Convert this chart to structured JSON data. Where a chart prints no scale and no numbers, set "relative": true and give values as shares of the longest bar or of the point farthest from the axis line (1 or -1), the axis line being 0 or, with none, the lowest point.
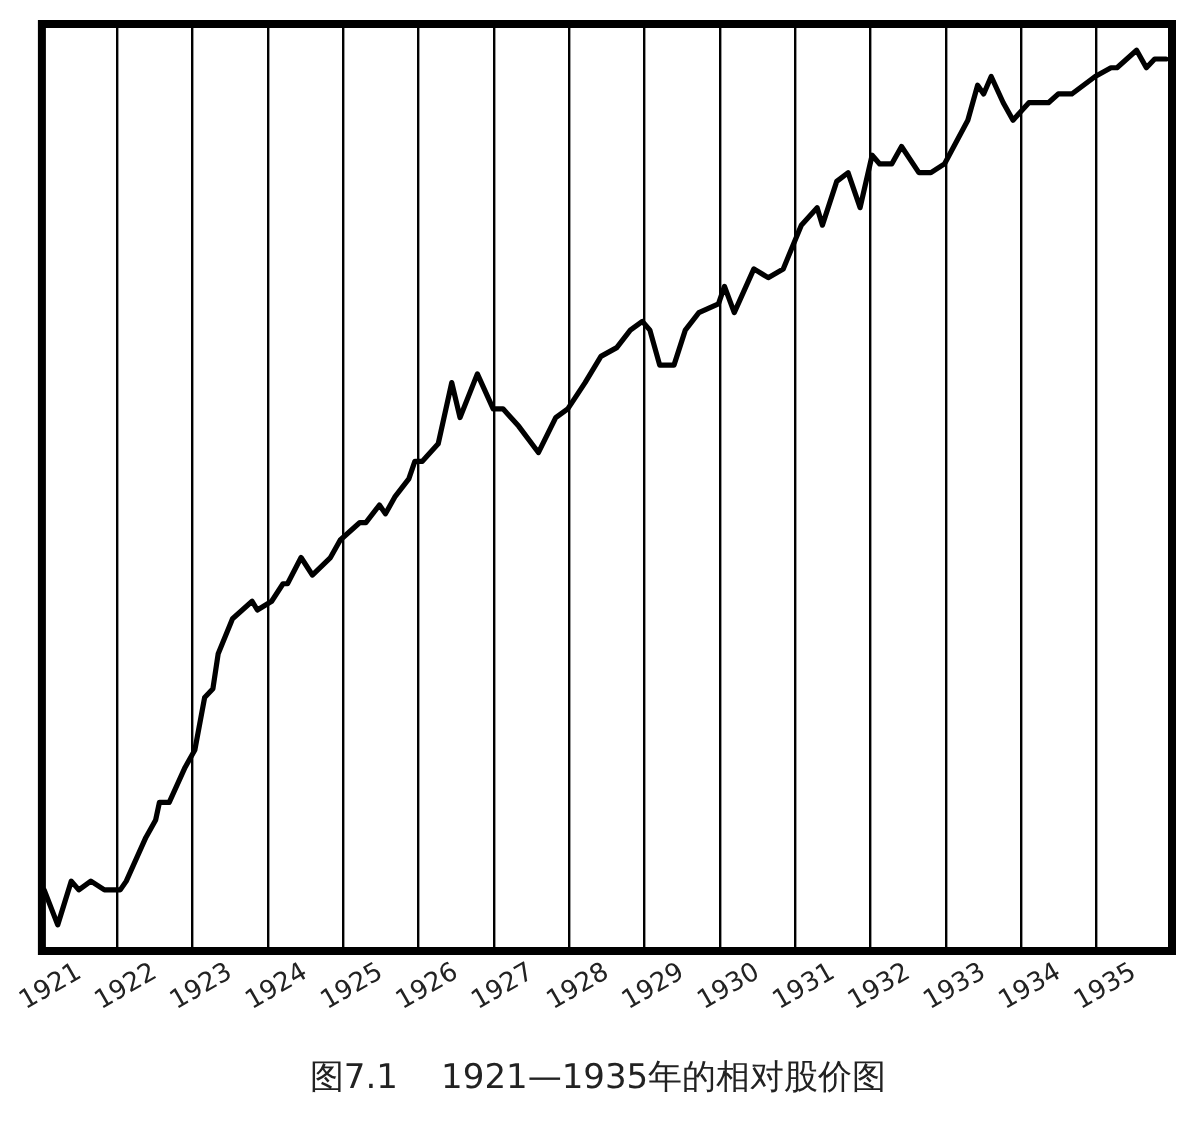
{
  "chart_data": {
    "type": "line",
    "title": "图7.1    1921—1935年的相对股价图",
    "relative": true,
    "grid": "x",
    "marker": "none",
    "line_style": "solid",
    "legend": false,
    "xlim": [
      1921,
      1936
    ],
    "xticks": [
      {
        "value": 1921.5,
        "label": "1921"
      },
      {
        "value": 1922,
        "label": null
      },
      {
        "value": 1922.5,
        "label": "1922"
      },
      {
        "value": 1923,
        "label": null
      },
      {
        "value": 1923.5,
        "label": "1923"
      },
      {
        "value": 1924,
        "label": null
      },
      {
        "value": 1924.5,
        "label": "1924"
      },
      {
        "value": 1925,
        "label": null
      },
      {
        "value": 1925.5,
        "label": "1925"
      },
      {
        "value": 1926,
        "label": null
      },
      {
        "value": 1926.5,
        "label": "1926"
      },
      {
        "value": 1927,
        "label": null
      },
      {
        "value": 1927.5,
        "label": "1927"
      },
      {
        "value": 1928,
        "label": null
      },
      {
        "value": 1928.5,
        "label": "1928"
      },
      {
        "value": 1929,
        "label": null
      },
      {
        "value": 1929.5,
        "label": "1929"
      },
      {
        "value": 1930,
        "label": null
      },
      {
        "value": 1930.5,
        "label": "1930"
      },
      {
        "value": 1931,
        "label": null
      },
      {
        "value": 1931.5,
        "label": "1931"
      },
      {
        "value": 1932,
        "label": null
      },
      {
        "value": 1932.5,
        "label": "1932"
      },
      {
        "value": 1933,
        "label": null
      },
      {
        "value": 1933.5,
        "label": "1933"
      },
      {
        "value": 1934,
        "label": null
      },
      {
        "value": 1934.5,
        "label": "1934"
      },
      {
        "value": 1935,
        "label": null
      },
      {
        "value": 1935.5,
        "label": "1935"
      }
    ],
    "x": [
      1921.03,
      1921.21,
      1921.39,
      1921.49,
      1921.65,
      1921.83,
      1922.04,
      1922.12,
      1922.38,
      1922.51,
      1922.56,
      1922.69,
      1922.9,
      1923.03,
      1923.16,
      1923.27,
      1923.34,
      1923.53,
      1923.79,
      1923.86,
      1924.05,
      1924.2,
      1924.26,
      1924.44,
      1924.59,
      1924.83,
      1924.96,
      1925.22,
      1925.3,
      1925.48,
      1925.56,
      1925.69,
      1925.87,
      1925.95,
      1926.05,
      1926.26,
      1926.44,
      1926.55,
      1926.78,
      1926.99,
      1927.12,
      1927.33,
      1927.59,
      1927.82,
      1927.98,
      1928.21,
      1928.42,
      1928.63,
      1928.81,
      1928.97,
      1929.07,
      1929.2,
      1929.39,
      1929.54,
      1929.72,
      1929.98,
      1930.06,
      1930.19,
      1930.45,
      1930.64,
      1930.84,
      1931.08,
      1931.29,
      1931.36,
      1931.55,
      1931.7,
      1931.86,
      1932.02,
      1932.12,
      1932.28,
      1932.41,
      1932.64,
      1932.8,
      1932.98,
      1933.29,
      1933.42,
      1933.5,
      1933.6,
      1933.76,
      1933.89,
      1934.1,
      1934.36,
      1934.49,
      1934.67,
      1934.98,
      1935.19,
      1935.27,
      1935.53,
      1935.66,
      1935.77,
      1935.92
    ],
    "series": [
      {
        "color": "#000000",
        "values": [
          0.04,
          0,
          0.05,
          0.04,
          0.05,
          0.04,
          0.04,
          0.05,
          0.1,
          0.12,
          0.14,
          0.14,
          0.18,
          0.2,
          0.26,
          0.27,
          0.31,
          0.35,
          0.37,
          0.36,
          0.37,
          0.39,
          0.39,
          0.42,
          0.4,
          0.42,
          0.44,
          0.46,
          0.46,
          0.48,
          0.47,
          0.49,
          0.51,
          0.53,
          0.53,
          0.55,
          0.62,
          0.58,
          0.63,
          0.59,
          0.59,
          0.57,
          0.54,
          0.58,
          0.59,
          0.62,
          0.65,
          0.66,
          0.68,
          0.69,
          0.68,
          0.64,
          0.64,
          0.68,
          0.7,
          0.71,
          0.73,
          0.7,
          0.75,
          0.74,
          0.75,
          0.8,
          0.82,
          0.8,
          0.85,
          0.86,
          0.82,
          0.88,
          0.87,
          0.87,
          0.89,
          0.86,
          0.86,
          0.87,
          0.92,
          0.96,
          0.95,
          0.97,
          0.94,
          0.92,
          0.94,
          0.94,
          0.95,
          0.95,
          0.97,
          0.98,
          0.98,
          1,
          0.98,
          0.99,
          0.99
        ]
      }
    ]
  }
}
